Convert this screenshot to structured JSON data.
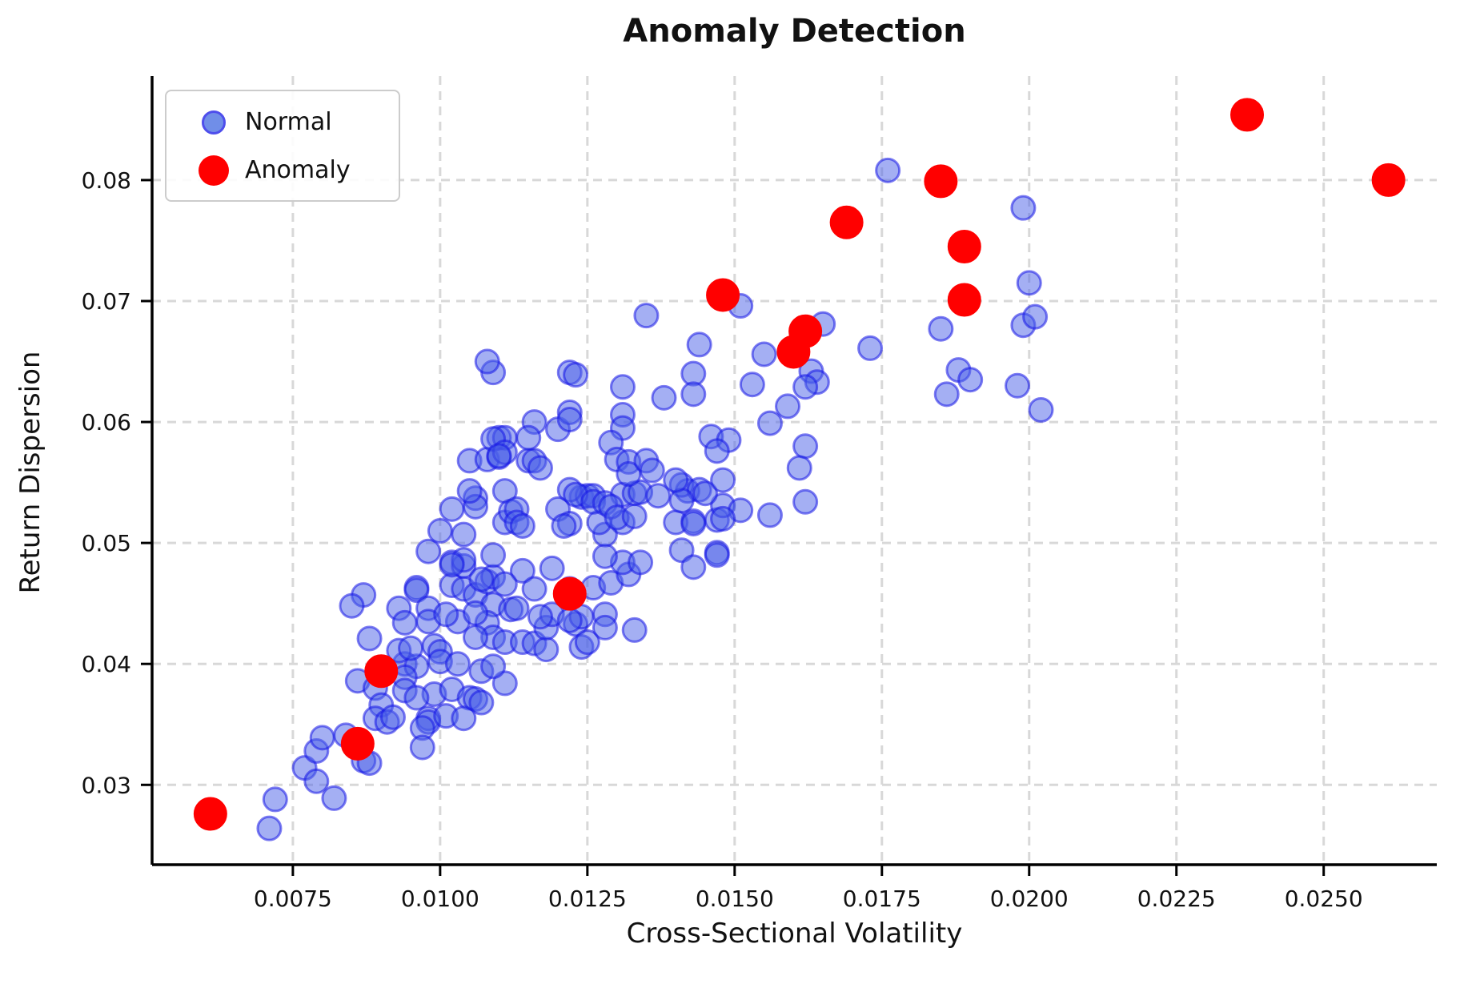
{
  "chart_data": {
    "type": "scatter",
    "title": "Anomaly Detection",
    "xlabel": "Cross-Sectional Volatility",
    "ylabel": "Return Dispersion",
    "xlim": [
      0.00511,
      0.02692
    ],
    "ylim": [
      0.0234,
      0.0886
    ],
    "x_ticks": [
      0.0075,
      0.01,
      0.0125,
      0.015,
      0.0175,
      0.02,
      0.0225,
      0.025
    ],
    "x_tick_labels": [
      "0.0075",
      "0.0100",
      "0.0125",
      "0.0150",
      "0.0175",
      "0.0200",
      "0.0225",
      "0.0250"
    ],
    "y_ticks": [
      0.03,
      0.04,
      0.05,
      0.06,
      0.07,
      0.08
    ],
    "y_tick_labels": [
      "0.03",
      "0.04",
      "0.05",
      "0.06",
      "0.07",
      "0.08"
    ],
    "grid": true,
    "grid_style": "dashed",
    "grid_color": "#d8d8d8",
    "spine_color": "#000000",
    "legend": {
      "position": "upper-left",
      "entries": [
        {
          "label": "Normal",
          "color": "#4169E1",
          "edge": "#1414e6",
          "size": "small"
        },
        {
          "label": "Anomaly",
          "color": "#ff0000",
          "edge": "#ff0000",
          "size": "large"
        }
      ]
    },
    "series": [
      {
        "name": "Normal",
        "marker": "circle",
        "color": "#4a5fe8",
        "edge_color": "#1414e6",
        "fill_opacity": 0.5,
        "edge_opacity": 0.55,
        "radius": 14.5,
        "points": [
          [
            0.0071,
            0.0264
          ],
          [
            0.0072,
            0.0288
          ],
          [
            0.0077,
            0.0314
          ],
          [
            0.0079,
            0.0303
          ],
          [
            0.0079,
            0.0328
          ],
          [
            0.008,
            0.0339
          ],
          [
            0.0082,
            0.0289
          ],
          [
            0.0084,
            0.0341
          ],
          [
            0.0086,
            0.0386
          ],
          [
            0.0087,
            0.032
          ],
          [
            0.0088,
            0.0318
          ],
          [
            0.0089,
            0.038
          ],
          [
            0.009,
            0.0366
          ],
          [
            0.0089,
            0.0355
          ],
          [
            0.0091,
            0.0352
          ],
          [
            0.0092,
            0.0356
          ],
          [
            0.0094,
            0.04
          ],
          [
            0.0096,
            0.0398
          ],
          [
            0.0093,
            0.0411
          ],
          [
            0.0095,
            0.0413
          ],
          [
            0.0099,
            0.0415
          ],
          [
            0.01,
            0.041
          ],
          [
            0.01,
            0.0402
          ],
          [
            0.0103,
            0.04
          ],
          [
            0.0094,
            0.0389
          ],
          [
            0.0094,
            0.0378
          ],
          [
            0.0099,
            0.0375
          ],
          [
            0.0102,
            0.0379
          ],
          [
            0.0105,
            0.0372
          ],
          [
            0.0096,
            0.0372
          ],
          [
            0.0098,
            0.0355
          ],
          [
            0.0098,
            0.0352
          ],
          [
            0.0101,
            0.0357
          ],
          [
            0.0104,
            0.0355
          ],
          [
            0.0097,
            0.0347
          ],
          [
            0.0097,
            0.0331
          ],
          [
            0.0106,
            0.0371
          ],
          [
            0.0107,
            0.0368
          ],
          [
            0.0111,
            0.0384
          ],
          [
            0.0107,
            0.0394
          ],
          [
            0.0109,
            0.0398
          ],
          [
            0.0087,
            0.0457
          ],
          [
            0.0085,
            0.0448
          ],
          [
            0.0088,
            0.0421
          ],
          [
            0.0093,
            0.0446
          ],
          [
            0.0096,
            0.0463
          ],
          [
            0.0096,
            0.0461
          ],
          [
            0.0098,
            0.0446
          ],
          [
            0.0098,
            0.0435
          ],
          [
            0.0094,
            0.0434
          ],
          [
            0.0102,
            0.0465
          ],
          [
            0.0104,
            0.0462
          ],
          [
            0.0106,
            0.0457
          ],
          [
            0.0108,
            0.0468
          ],
          [
            0.0109,
            0.0472
          ],
          [
            0.0109,
            0.0449
          ],
          [
            0.0108,
            0.0434
          ],
          [
            0.0103,
            0.0435
          ],
          [
            0.0101,
            0.0441
          ],
          [
            0.0106,
            0.0442
          ],
          [
            0.0109,
            0.0422
          ],
          [
            0.0111,
            0.0418
          ],
          [
            0.0106,
            0.0422
          ],
          [
            0.0112,
            0.0445
          ],
          [
            0.0113,
            0.0446
          ],
          [
            0.0114,
            0.0418
          ],
          [
            0.0116,
            0.0417
          ],
          [
            0.0118,
            0.0412
          ],
          [
            0.0118,
            0.043
          ],
          [
            0.0119,
            0.0441
          ],
          [
            0.0123,
            0.0433
          ],
          [
            0.0124,
            0.0439
          ],
          [
            0.0124,
            0.0414
          ],
          [
            0.0125,
            0.0418
          ],
          [
            0.0128,
            0.0441
          ],
          [
            0.0128,
            0.043
          ],
          [
            0.0133,
            0.0428
          ],
          [
            0.0122,
            0.0462
          ],
          [
            0.0126,
            0.0463
          ],
          [
            0.0117,
            0.0439
          ],
          [
            0.0122,
            0.0436
          ],
          [
            0.0129,
            0.0467
          ],
          [
            0.0132,
            0.0474
          ],
          [
            0.0114,
            0.0477
          ],
          [
            0.0098,
            0.0493
          ],
          [
            0.01,
            0.051
          ],
          [
            0.0104,
            0.0507
          ],
          [
            0.0102,
            0.0484
          ],
          [
            0.0104,
            0.0481
          ],
          [
            0.0104,
            0.0486
          ],
          [
            0.0102,
            0.0482
          ],
          [
            0.0107,
            0.047
          ],
          [
            0.0109,
            0.049
          ],
          [
            0.0111,
            0.0466
          ],
          [
            0.0116,
            0.0462
          ],
          [
            0.0119,
            0.0479
          ],
          [
            0.0131,
            0.0484
          ],
          [
            0.0134,
            0.0484
          ],
          [
            0.0128,
            0.0489
          ],
          [
            0.0141,
            0.0494
          ],
          [
            0.0143,
            0.048
          ],
          [
            0.0147,
            0.0492
          ],
          [
            0.0128,
            0.0507
          ],
          [
            0.0131,
            0.0517
          ],
          [
            0.0111,
            0.0517
          ],
          [
            0.0147,
            0.049
          ],
          [
            0.0102,
            0.0528
          ],
          [
            0.0106,
            0.0537
          ],
          [
            0.0111,
            0.0543
          ],
          [
            0.0106,
            0.053
          ],
          [
            0.0112,
            0.0526
          ],
          [
            0.0113,
            0.0528
          ],
          [
            0.012,
            0.0528
          ],
          [
            0.0122,
            0.0516
          ],
          [
            0.0127,
            0.0517
          ],
          [
            0.014,
            0.0517
          ],
          [
            0.0143,
            0.0518
          ],
          [
            0.0147,
            0.0519
          ],
          [
            0.0121,
            0.0514
          ],
          [
            0.0113,
            0.0517
          ],
          [
            0.0114,
            0.0514
          ],
          [
            0.0105,
            0.0543
          ],
          [
            0.0124,
            0.0538
          ],
          [
            0.0125,
            0.0539
          ],
          [
            0.0126,
            0.0539
          ],
          [
            0.0131,
            0.054
          ],
          [
            0.0133,
            0.0541
          ],
          [
            0.0134,
            0.0542
          ],
          [
            0.0137,
            0.0539
          ],
          [
            0.0142,
            0.0543
          ],
          [
            0.0148,
            0.0531
          ],
          [
            0.0151,
            0.0527
          ],
          [
            0.0156,
            0.0523
          ],
          [
            0.0148,
            0.052
          ],
          [
            0.0143,
            0.0516
          ],
          [
            0.0122,
            0.0544
          ],
          [
            0.0123,
            0.054
          ],
          [
            0.0141,
            0.0548
          ],
          [
            0.0144,
            0.0544
          ],
          [
            0.0145,
            0.0541
          ],
          [
            0.0141,
            0.0535
          ],
          [
            0.014,
            0.0552
          ],
          [
            0.0148,
            0.0552
          ],
          [
            0.0126,
            0.0534
          ],
          [
            0.0128,
            0.0533
          ],
          [
            0.0129,
            0.053
          ],
          [
            0.013,
            0.0521
          ],
          [
            0.0133,
            0.0522
          ],
          [
            0.0162,
            0.0534
          ],
          [
            0.0105,
            0.0568
          ],
          [
            0.0108,
            0.0569
          ],
          [
            0.011,
            0.0571
          ],
          [
            0.011,
            0.0587
          ],
          [
            0.0111,
            0.0587
          ],
          [
            0.0115,
            0.0568
          ],
          [
            0.0116,
            0.0568
          ],
          [
            0.0117,
            0.0562
          ],
          [
            0.0116,
            0.06
          ],
          [
            0.0115,
            0.0587
          ],
          [
            0.012,
            0.0594
          ],
          [
            0.0122,
            0.0608
          ],
          [
            0.0122,
            0.0602
          ],
          [
            0.0131,
            0.0606
          ],
          [
            0.0131,
            0.0595
          ],
          [
            0.0129,
            0.0583
          ],
          [
            0.013,
            0.0569
          ],
          [
            0.0132,
            0.0567
          ],
          [
            0.0132,
            0.0557
          ],
          [
            0.0146,
            0.0588
          ],
          [
            0.0149,
            0.0585
          ],
          [
            0.0147,
            0.0576
          ],
          [
            0.0156,
            0.0599
          ],
          [
            0.0159,
            0.0613
          ],
          [
            0.0162,
            0.058
          ],
          [
            0.0161,
            0.0562
          ],
          [
            0.0109,
            0.0586
          ],
          [
            0.0111,
            0.0575
          ],
          [
            0.0135,
            0.0568
          ],
          [
            0.0136,
            0.056
          ],
          [
            0.011,
            0.0572
          ],
          [
            0.0138,
            0.062
          ],
          [
            0.0109,
            0.0641
          ],
          [
            0.0108,
            0.065
          ],
          [
            0.0122,
            0.0641
          ],
          [
            0.0123,
            0.0639
          ],
          [
            0.0131,
            0.0629
          ],
          [
            0.0135,
            0.0688
          ],
          [
            0.0144,
            0.0664
          ],
          [
            0.0155,
            0.0656
          ],
          [
            0.0173,
            0.0661
          ],
          [
            0.0143,
            0.064
          ],
          [
            0.0143,
            0.0623
          ],
          [
            0.0153,
            0.0631
          ],
          [
            0.0163,
            0.0642
          ],
          [
            0.0164,
            0.0633
          ],
          [
            0.0162,
            0.0629
          ],
          [
            0.0165,
            0.0681
          ],
          [
            0.0185,
            0.0677
          ],
          [
            0.0188,
            0.0643
          ],
          [
            0.019,
            0.0635
          ],
          [
            0.0186,
            0.0623
          ],
          [
            0.0198,
            0.063
          ],
          [
            0.0202,
            0.061
          ],
          [
            0.0176,
            0.0808
          ],
          [
            0.0199,
            0.0777
          ],
          [
            0.02,
            0.0715
          ],
          [
            0.0199,
            0.068
          ],
          [
            0.0201,
            0.0687
          ],
          [
            0.0151,
            0.0696
          ]
        ]
      },
      {
        "name": "Anomaly",
        "marker": "circle",
        "color": "#ff0000",
        "edge_color": "#ff0000",
        "fill_opacity": 1.0,
        "edge_opacity": 1.0,
        "radius": 19.5,
        "points": [
          [
            0.0061,
            0.0276
          ],
          [
            0.0086,
            0.0334
          ],
          [
            0.009,
            0.0394
          ],
          [
            0.0122,
            0.0458
          ],
          [
            0.0148,
            0.0705
          ],
          [
            0.016,
            0.0658
          ],
          [
            0.0162,
            0.0675
          ],
          [
            0.0169,
            0.0765
          ],
          [
            0.0185,
            0.0799
          ],
          [
            0.0189,
            0.0745
          ],
          [
            0.0189,
            0.0701
          ],
          [
            0.0237,
            0.0854
          ],
          [
            0.0261,
            0.08
          ]
        ]
      }
    ]
  }
}
